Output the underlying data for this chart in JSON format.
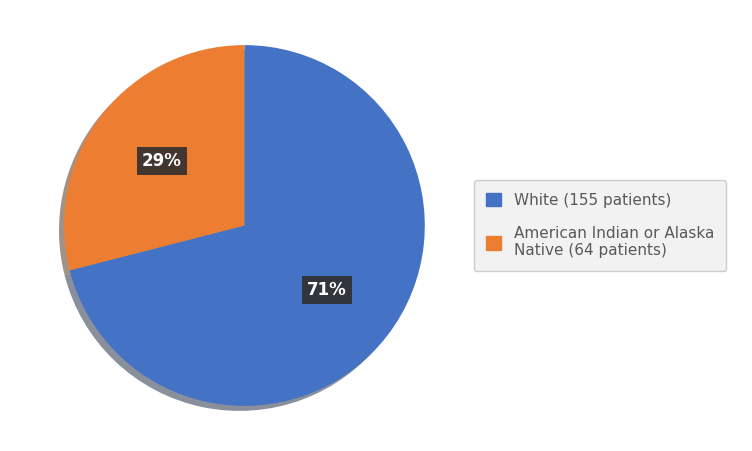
{
  "slices": [
    71,
    29
  ],
  "labels": [
    "White (155 patients)",
    "American Indian or Alaska\nNative (64 patients)"
  ],
  "colors": [
    "#4472C4",
    "#ED7D31"
  ],
  "autopct_labels": [
    "71%",
    "29%"
  ],
  "startangle": 90,
  "background_color": "#FFFFFF",
  "pct_fontsize": 12,
  "pct_text_color": "#FFFFFF",
  "pct_bg_color": "#2F2F2F",
  "legend_fontsize": 11,
  "legend_text_color": "#595959"
}
